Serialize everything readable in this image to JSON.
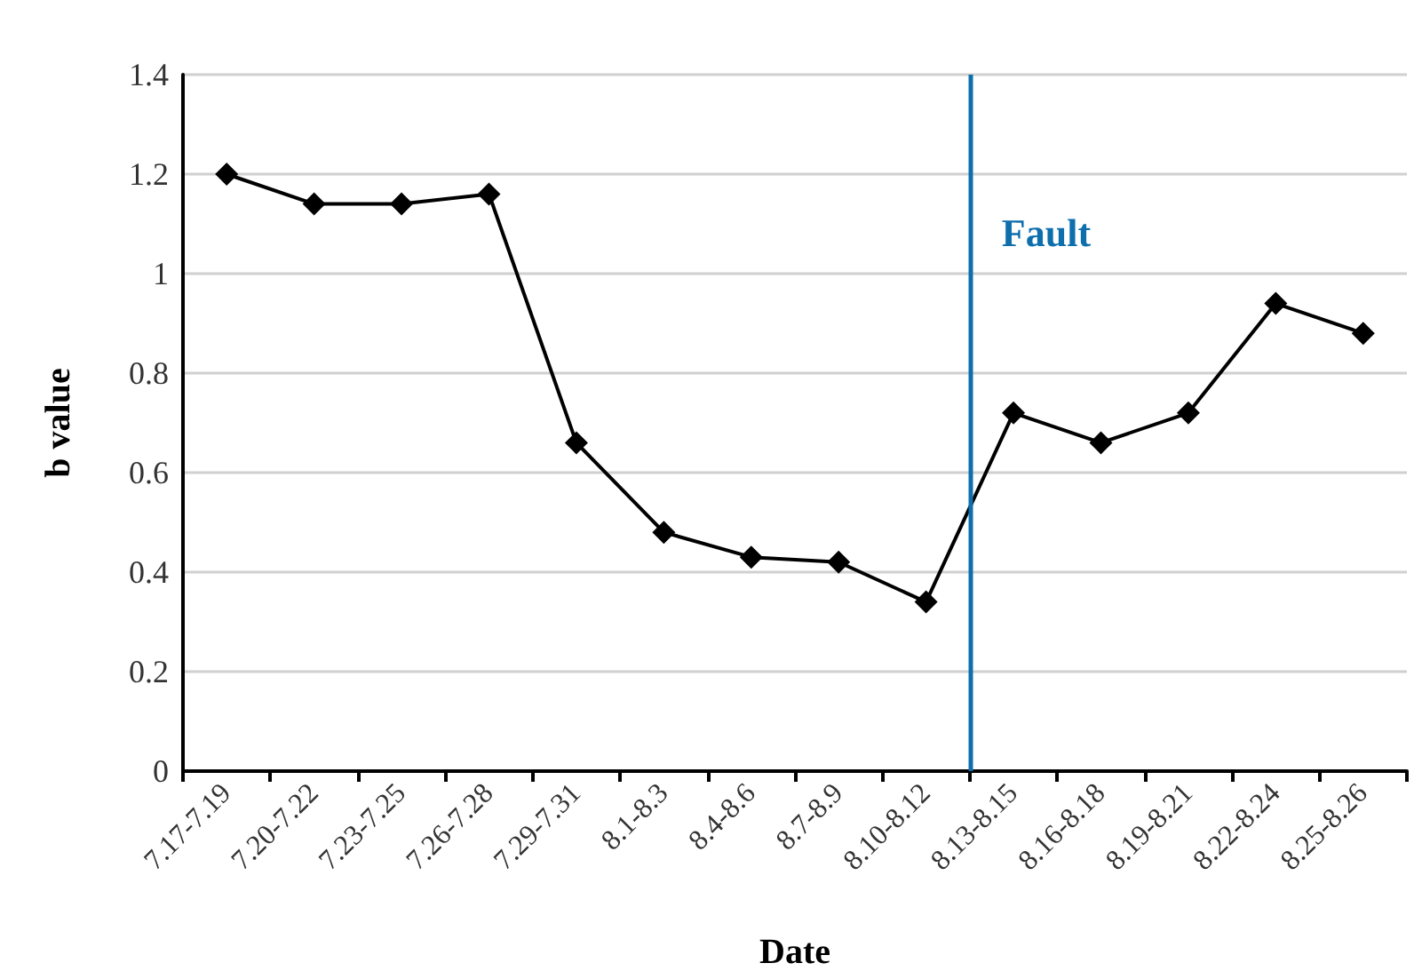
{
  "chart_data": {
    "type": "line",
    "xlabel": "Date",
    "ylabel": "b value",
    "categories": [
      "7.17-7.19",
      "7.20-7.22",
      "7.23-7.25",
      "7.26-7.28",
      "7.29-7.31",
      "8.1-8.3",
      "8.4-8.6",
      "8.7-8.9",
      "8.10-8.12",
      "8.13-8.15",
      "8.16-8.18",
      "8.19-8.21",
      "8.22-8.24",
      "8.25-8.26"
    ],
    "series": [
      {
        "color": "#000000",
        "values": [
          1.2,
          1.14,
          1.14,
          1.16,
          0.66,
          0.48,
          0.43,
          0.42,
          0.34,
          0.72,
          0.66,
          0.72,
          0.94,
          0.88
        ]
      }
    ],
    "ylim": [
      0,
      1.4
    ],
    "yticks": [
      0,
      0.2,
      0.4,
      0.6,
      0.8,
      1,
      1.2,
      1.4
    ],
    "ref_lines": [
      {
        "axis": "x",
        "value": "8.13-8.15",
        "label": "Fault",
        "color": "#0e6fad"
      }
    ],
    "grid": "y",
    "marker": "diamond",
    "line_style": "solid"
  }
}
